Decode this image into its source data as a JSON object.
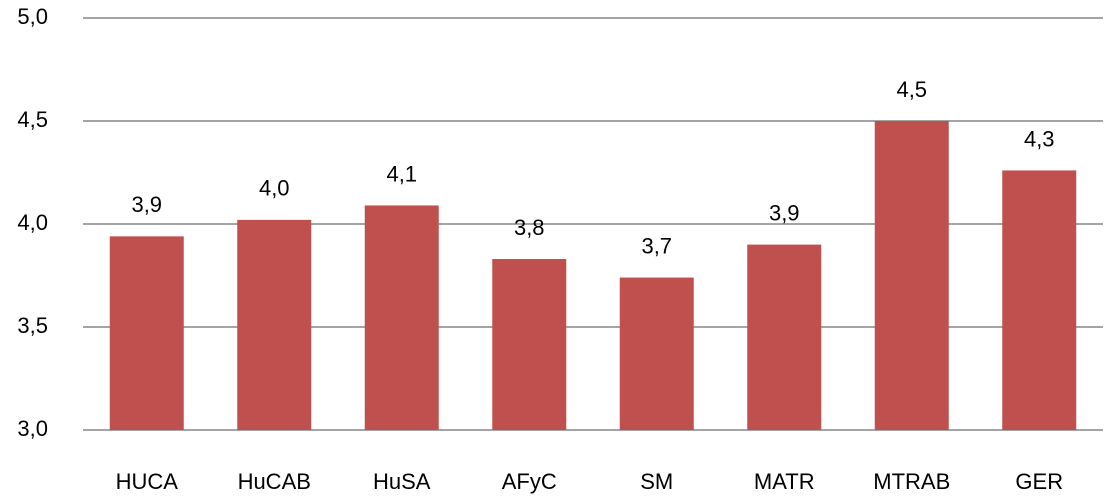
{
  "chart_data": {
    "type": "bar",
    "categories": [
      "HUCA",
      "HuCAB",
      "HuSA",
      "AFyC",
      "SM",
      "MATR",
      "MTRAB",
      "GER"
    ],
    "values": [
      3.94,
      4.02,
      4.09,
      3.83,
      3.74,
      3.9,
      4.5,
      4.26
    ],
    "value_labels": [
      "3,9",
      "4,0",
      "4,1",
      "3,8",
      "3,7",
      "3,9",
      "4,5",
      "4,3"
    ],
    "color": "#c0504d",
    "ylim": [
      3,
      5
    ],
    "yticks": [
      {
        "value": 3,
        "label": "3,0"
      },
      {
        "value": 3.5,
        "label": "3,5"
      },
      {
        "value": 4,
        "label": "4,0"
      },
      {
        "value": 4.5,
        "label": "4,5"
      },
      {
        "value": 5,
        "label": "5,0"
      }
    ],
    "grid": true
  }
}
